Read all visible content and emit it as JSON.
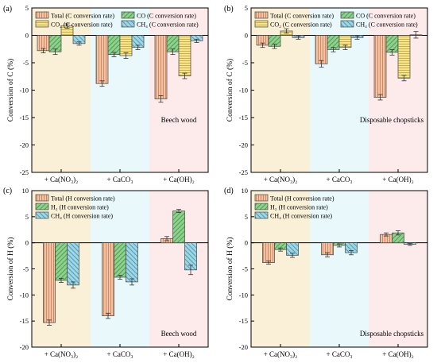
{
  "colors": {
    "total": "#f2c3a3",
    "h2": "#8ed08e",
    "co": "#8ed08e",
    "co2": "#f6e58e",
    "ch4": "#9fd6e4",
    "band_nitrate": "#faf0d7",
    "band_carbonate": "#e9f8fb",
    "band_hydroxide": "#fdeaea"
  },
  "chart_data": [
    {
      "panel_label": "(a)",
      "type": "bar",
      "ylabel": "Conversion of C (%)",
      "ylim": [
        -25,
        5
      ],
      "yticks": [
        5,
        0,
        -5,
        -10,
        -15,
        -20,
        -25
      ],
      "categories": [
        "+ Ca(NO₃)₂",
        "+ CaCO₃",
        "+ Ca(OH)₂"
      ],
      "annotation": "Beech wood",
      "legend_cols": 2,
      "series": [
        {
          "key": "total",
          "label": "Total (C conversion rate)",
          "values": [
            -2.8,
            -8.8,
            -11.6
          ],
          "errors": [
            0.4,
            0.5,
            0.6
          ]
        },
        {
          "key": "co",
          "label": "CO  (C conversion rate)",
          "values": [
            -3.0,
            -3.5,
            -3.0
          ],
          "errors": [
            0.5,
            0.4,
            0.5
          ]
        },
        {
          "key": "co2",
          "label": "CO₂  (C conversion rate)",
          "values": [
            1.7,
            -3.7,
            -7.4
          ],
          "errors": [
            0.4,
            0.5,
            0.5
          ]
        },
        {
          "key": "ch4",
          "label": "CH₄ (C conversion rate)",
          "values": [
            -1.5,
            -2.2,
            -1.0
          ],
          "errors": [
            0.3,
            0.4,
            0.3
          ]
        }
      ]
    },
    {
      "panel_label": "(b)",
      "type": "bar",
      "ylabel": "Conversion of C (%)",
      "ylim": [
        -25,
        5
      ],
      "yticks": [
        5,
        0,
        -5,
        -10,
        -15,
        -20,
        -25
      ],
      "categories": [
        "+ Ca(NO₃)₂",
        "+ CaCO₃",
        "+ Ca(OH)₂"
      ],
      "annotation": "Disposable chopsticks",
      "legend_cols": 2,
      "series": [
        {
          "key": "total",
          "label": "Total (C conversion rate)",
          "values": [
            -1.8,
            -5.2,
            -11.3
          ],
          "errors": [
            0.4,
            0.6,
            0.5
          ]
        },
        {
          "key": "co",
          "label": "CO  (C conversion rate)",
          "values": [
            -2.0,
            -2.6,
            -3.1
          ],
          "errors": [
            0.4,
            0.4,
            0.5
          ]
        },
        {
          "key": "co2",
          "label": "CO₂  (C conversion rate)",
          "values": [
            0.8,
            -2.2,
            -7.8
          ],
          "errors": [
            0.4,
            0.4,
            0.5
          ]
        },
        {
          "key": "ch4",
          "label": "CH₄ (C conversion rate)",
          "values": [
            -0.4,
            -0.4,
            0.1
          ],
          "errors": [
            0.3,
            0.3,
            0.6
          ]
        }
      ]
    },
    {
      "panel_label": "(c)",
      "type": "bar",
      "ylabel": "Conversion of H (%)",
      "ylim": [
        -20,
        10
      ],
      "yticks": [
        10,
        5,
        0,
        -5,
        -10,
        -15,
        -20
      ],
      "categories": [
        "+ Ca(NO₃)₂",
        "+ CaCO₃",
        "+ Ca(OH)₂"
      ],
      "annotation": "Beech wood",
      "legend_cols": 1,
      "series": [
        {
          "key": "total",
          "label": "Total (H conversion rate)",
          "values": [
            -15.3,
            -14.0,
            0.8
          ],
          "errors": [
            0.5,
            0.5,
            0.4
          ]
        },
        {
          "key": "h2",
          "label": "H₂     (H conversion rate)",
          "values": [
            -7.2,
            -6.6,
            6.1
          ],
          "errors": [
            0.4,
            0.4,
            0.3
          ]
        },
        {
          "key": "ch4",
          "label": "CH₄   (H conversion rate)",
          "values": [
            -8.1,
            -7.5,
            -5.2
          ],
          "errors": [
            0.6,
            0.6,
            0.9
          ]
        }
      ]
    },
    {
      "panel_label": "(d)",
      "type": "bar",
      "ylabel": "Conversion of H (%)",
      "ylim": [
        -20,
        10
      ],
      "yticks": [
        10,
        5,
        0,
        -5,
        -10,
        -15,
        -20
      ],
      "categories": [
        "+ Ca(NO₃)₂",
        "+ CaCO₃",
        "+ Ca(OH)₂"
      ],
      "annotation": "Disposable chopsticks",
      "legend_cols": 1,
      "series": [
        {
          "key": "total",
          "label": "Total  (H conversion rate)",
          "values": [
            -3.8,
            -2.3,
            1.6
          ],
          "errors": [
            0.3,
            0.4,
            0.3
          ]
        },
        {
          "key": "h2",
          "label": "H₂     (H conversion rate)",
          "values": [
            -1.3,
            -0.5,
            1.9
          ],
          "errors": [
            0.3,
            0.3,
            0.4
          ]
        },
        {
          "key": "ch4",
          "label": "CH₄   (H conversion rate)",
          "values": [
            -2.4,
            -1.9,
            -0.3
          ],
          "errors": [
            0.4,
            0.4,
            0.2
          ]
        }
      ]
    }
  ]
}
